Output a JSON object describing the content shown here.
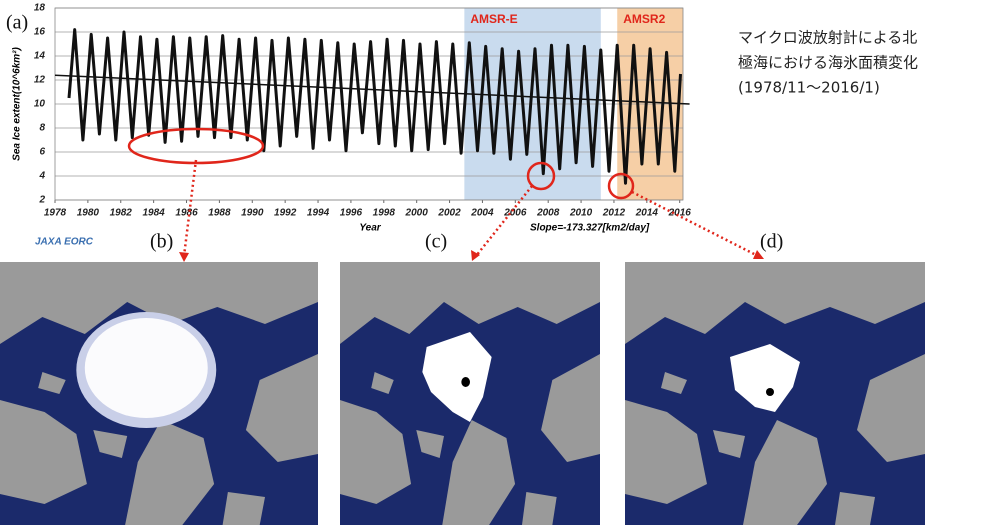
{
  "chart_data": {
    "type": "line",
    "ylabel": "Sea Ice extent(10^6km²)",
    "xlabel": "Year",
    "annotation": "Slope=-173.327[km2/day]",
    "xlim": [
      1978,
      2016.2
    ],
    "ylim": [
      2,
      18
    ],
    "xticks": [
      1978,
      1980,
      1982,
      1984,
      1986,
      1988,
      1990,
      1992,
      1994,
      1996,
      1998,
      2000,
      2002,
      2004,
      2006,
      2008,
      2010,
      2012,
      2014,
      2016
    ],
    "yticks": [
      2,
      4,
      6,
      8,
      10,
      12,
      14,
      16,
      18
    ],
    "grid": true,
    "regions": [
      {
        "label": "AMSR-E",
        "start": 2002.9,
        "end": 2011.2,
        "color": "#c9dbee"
      },
      {
        "label": "AMSR2",
        "start": 2012.2,
        "end": 2016.2,
        "color": "#f6cfa6"
      }
    ],
    "series": [
      {
        "color": "#111111",
        "x": [
          1978.85,
          1979.2,
          1979.7,
          1980.2,
          1980.7,
          1981.2,
          1981.7,
          1982.2,
          1982.7,
          1983.2,
          1983.7,
          1984.2,
          1984.7,
          1985.2,
          1985.7,
          1986.2,
          1986.7,
          1987.2,
          1987.7,
          1988.2,
          1988.7,
          1989.2,
          1989.7,
          1990.2,
          1990.7,
          1991.2,
          1991.7,
          1992.2,
          1992.7,
          1993.2,
          1993.7,
          1994.2,
          1994.7,
          1995.2,
          1995.7,
          1996.2,
          1996.7,
          1997.2,
          1997.7,
          1998.2,
          1998.7,
          1999.2,
          1999.7,
          2000.2,
          2000.7,
          2001.2,
          2001.7,
          2002.2,
          2002.7,
          2003.2,
          2003.7,
          2004.2,
          2004.7,
          2005.2,
          2005.7,
          2006.2,
          2006.7,
          2007.2,
          2007.7,
          2008.2,
          2008.7,
          2009.2,
          2009.7,
          2010.2,
          2010.7,
          2011.2,
          2011.7,
          2012.2,
          2012.7,
          2013.2,
          2013.7,
          2014.2,
          2014.7,
          2015.2,
          2015.7,
          2016.05
        ],
        "values": [
          10.5,
          16.2,
          7.0,
          15.8,
          7.5,
          15.5,
          7.0,
          16.0,
          7.2,
          15.6,
          7.4,
          15.4,
          6.8,
          15.6,
          6.9,
          15.5,
          7.3,
          15.6,
          7.2,
          15.7,
          7.2,
          15.4,
          7.0,
          15.5,
          6.1,
          15.3,
          6.5,
          15.5,
          7.3,
          15.4,
          6.3,
          15.3,
          7.0,
          15.1,
          6.1,
          15.0,
          7.6,
          15.2,
          6.7,
          15.4,
          6.5,
          15.3,
          6.1,
          15.0,
          6.2,
          15.2,
          6.7,
          15.0,
          5.9,
          15.1,
          6.1,
          14.8,
          5.9,
          14.6,
          5.4,
          14.4,
          5.8,
          14.6,
          4.2,
          14.9,
          4.6,
          14.9,
          5.1,
          14.8,
          4.8,
          14.5,
          4.4,
          14.9,
          3.4,
          14.9,
          5.0,
          14.6,
          5.0,
          14.3,
          4.4,
          12.5
        ]
      }
    ],
    "trend": {
      "color": "#111111",
      "x": [
        1978,
        2016.6
      ],
      "values": [
        12.4,
        10.0
      ]
    }
  },
  "logo": "JAXA EORC",
  "panel_labels": [
    "(a)",
    "(b)",
    "(c)",
    "(d)"
  ],
  "caption": [
    "マイクロ波放射計による北",
    "極海における海氷面積変化",
    "(1978/11〜2016/1)"
  ]
}
